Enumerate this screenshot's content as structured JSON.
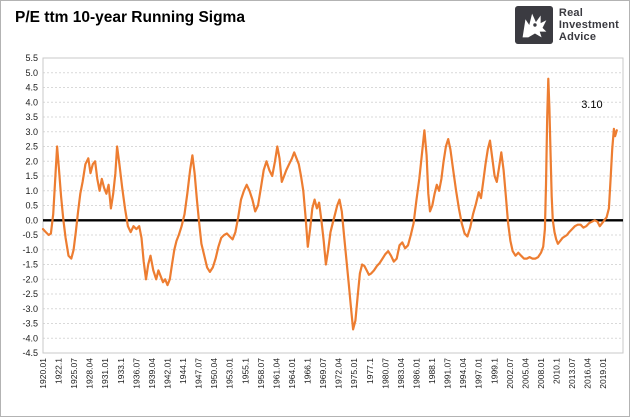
{
  "header": {
    "title": "P/E ttm 10-year Running Sigma"
  },
  "logo": {
    "lines": [
      "Real",
      "Investment",
      "Advice"
    ]
  },
  "chart_data": {
    "type": "line",
    "title": "P/E ttm 10-year Running Sigma",
    "series_name": "P/E ttm 10-year Running Sigma",
    "xlabel": "",
    "ylabel": "",
    "line_color": "#ED7D31",
    "zero_line_color": "#000000",
    "grid_color": "#d9d9d9",
    "ylim": [
      -4.5,
      5.5
    ],
    "y_tick_step": 0.5,
    "y_ticks": [
      "5.5",
      "5.0",
      "4.5",
      "4.0",
      "3.5",
      "3.0",
      "2.5",
      "2.0",
      "1.5",
      "1.0",
      "0.5",
      "0.0",
      "-0.5",
      "-1.0",
      "-1.5",
      "-2.0",
      "-2.5",
      "-3.0",
      "-3.5",
      "-4.0",
      "-4.5"
    ],
    "xlim": [
      1920.0,
      2022.5
    ],
    "x_tick_interval_years": 2.75,
    "x_tick_labels": [
      "1920.01",
      "1922.1",
      "1925.07",
      "1928.04",
      "1931.01",
      "1933.1",
      "1936.07",
      "1939.04",
      "1942.01",
      "1944.1",
      "1947.07",
      "1950.04",
      "1953.01",
      "1955.1",
      "1958.07",
      "1961.04",
      "1964.01",
      "1966.1",
      "1969.07",
      "1972.04",
      "1975.01",
      "1977.1",
      "1980.07",
      "1983.04",
      "1986.01",
      "1988.1",
      "1991.07",
      "1994.04",
      "1997.01",
      "1999.1",
      "2002.07",
      "2005.04",
      "2008.01",
      "2010.1",
      "2013.07",
      "2016.04",
      "2019.01"
    ],
    "annotation": {
      "text": "3.10",
      "year": 2017.0,
      "value": 3.8
    },
    "points": [
      [
        1920.0,
        -0.3
      ],
      [
        1920.5,
        -0.4
      ],
      [
        1921.0,
        -0.5
      ],
      [
        1921.4,
        -0.45
      ],
      [
        1921.8,
        0.2
      ],
      [
        1922.2,
        1.5
      ],
      [
        1922.5,
        2.5
      ],
      [
        1922.8,
        1.8
      ],
      [
        1923.2,
        0.8
      ],
      [
        1923.6,
        0.0
      ],
      [
        1924.0,
        -0.6
      ],
      [
        1924.5,
        -1.2
      ],
      [
        1925.0,
        -1.3
      ],
      [
        1925.4,
        -1.0
      ],
      [
        1925.8,
        -0.4
      ],
      [
        1926.2,
        0.3
      ],
      [
        1926.6,
        0.9
      ],
      [
        1927.0,
        1.3
      ],
      [
        1927.5,
        1.9
      ],
      [
        1928.0,
        2.1
      ],
      [
        1928.4,
        1.6
      ],
      [
        1928.8,
        1.9
      ],
      [
        1929.2,
        2.0
      ],
      [
        1929.6,
        1.4
      ],
      [
        1930.0,
        1.0
      ],
      [
        1930.4,
        1.4
      ],
      [
        1930.8,
        1.1
      ],
      [
        1931.2,
        0.9
      ],
      [
        1931.6,
        1.2
      ],
      [
        1932.0,
        0.4
      ],
      [
        1932.4,
        0.9
      ],
      [
        1932.8,
        1.6
      ],
      [
        1933.1,
        2.5
      ],
      [
        1933.5,
        1.9
      ],
      [
        1934.0,
        1.1
      ],
      [
        1934.5,
        0.4
      ],
      [
        1935.0,
        -0.2
      ],
      [
        1935.5,
        -0.4
      ],
      [
        1936.0,
        -0.2
      ],
      [
        1936.5,
        -0.3
      ],
      [
        1937.0,
        -0.2
      ],
      [
        1937.4,
        -0.6
      ],
      [
        1937.8,
        -1.4
      ],
      [
        1938.2,
        -2.0
      ],
      [
        1938.6,
        -1.5
      ],
      [
        1939.0,
        -1.2
      ],
      [
        1939.5,
        -1.7
      ],
      [
        1940.0,
        -2.0
      ],
      [
        1940.4,
        -1.7
      ],
      [
        1940.8,
        -1.9
      ],
      [
        1941.2,
        -2.1
      ],
      [
        1941.6,
        -2.0
      ],
      [
        1942.0,
        -2.2
      ],
      [
        1942.4,
        -2.0
      ],
      [
        1942.8,
        -1.5
      ],
      [
        1943.2,
        -1.0
      ],
      [
        1943.6,
        -0.7
      ],
      [
        1944.0,
        -0.5
      ],
      [
        1944.5,
        -0.2
      ],
      [
        1945.0,
        0.2
      ],
      [
        1945.5,
        0.9
      ],
      [
        1946.0,
        1.7
      ],
      [
        1946.4,
        2.2
      ],
      [
        1946.8,
        1.6
      ],
      [
        1947.2,
        0.7
      ],
      [
        1947.6,
        -0.1
      ],
      [
        1948.0,
        -0.8
      ],
      [
        1948.5,
        -1.2
      ],
      [
        1949.0,
        -1.6
      ],
      [
        1949.5,
        -1.75
      ],
      [
        1950.0,
        -1.6
      ],
      [
        1950.5,
        -1.3
      ],
      [
        1951.0,
        -0.9
      ],
      [
        1951.5,
        -0.6
      ],
      [
        1952.0,
        -0.5
      ],
      [
        1952.5,
        -0.45
      ],
      [
        1953.0,
        -0.55
      ],
      [
        1953.5,
        -0.65
      ],
      [
        1954.0,
        -0.4
      ],
      [
        1954.5,
        0.1
      ],
      [
        1955.0,
        0.7
      ],
      [
        1955.5,
        1.0
      ],
      [
        1956.0,
        1.2
      ],
      [
        1956.5,
        1.0
      ],
      [
        1957.0,
        0.7
      ],
      [
        1957.5,
        0.3
      ],
      [
        1958.0,
        0.5
      ],
      [
        1958.5,
        1.1
      ],
      [
        1959.0,
        1.7
      ],
      [
        1959.5,
        2.0
      ],
      [
        1960.0,
        1.7
      ],
      [
        1960.5,
        1.5
      ],
      [
        1961.0,
        2.0
      ],
      [
        1961.4,
        2.5
      ],
      [
        1961.8,
        2.1
      ],
      [
        1962.2,
        1.3
      ],
      [
        1962.6,
        1.5
      ],
      [
        1963.0,
        1.7
      ],
      [
        1963.5,
        1.9
      ],
      [
        1964.0,
        2.1
      ],
      [
        1964.4,
        2.3
      ],
      [
        1964.8,
        2.1
      ],
      [
        1965.2,
        1.9
      ],
      [
        1965.6,
        1.5
      ],
      [
        1966.0,
        1.0
      ],
      [
        1966.4,
        0.1
      ],
      [
        1966.8,
        -0.9
      ],
      [
        1967.2,
        -0.3
      ],
      [
        1967.6,
        0.4
      ],
      [
        1968.0,
        0.7
      ],
      [
        1968.4,
        0.4
      ],
      [
        1968.8,
        0.6
      ],
      [
        1969.2,
        0.0
      ],
      [
        1969.6,
        -0.7
      ],
      [
        1970.0,
        -1.5
      ],
      [
        1970.4,
        -1.0
      ],
      [
        1970.8,
        -0.4
      ],
      [
        1971.2,
        -0.1
      ],
      [
        1971.6,
        0.2
      ],
      [
        1972.0,
        0.5
      ],
      [
        1972.4,
        0.7
      ],
      [
        1972.8,
        0.3
      ],
      [
        1973.2,
        -0.5
      ],
      [
        1973.6,
        -1.3
      ],
      [
        1974.0,
        -2.1
      ],
      [
        1974.4,
        -2.9
      ],
      [
        1974.8,
        -3.7
      ],
      [
        1975.2,
        -3.4
      ],
      [
        1975.6,
        -2.6
      ],
      [
        1976.0,
        -1.8
      ],
      [
        1976.4,
        -1.5
      ],
      [
        1976.8,
        -1.55
      ],
      [
        1977.2,
        -1.7
      ],
      [
        1977.6,
        -1.85
      ],
      [
        1978.0,
        -1.8
      ],
      [
        1978.5,
        -1.7
      ],
      [
        1979.0,
        -1.55
      ],
      [
        1979.5,
        -1.45
      ],
      [
        1980.0,
        -1.3
      ],
      [
        1980.5,
        -1.15
      ],
      [
        1981.0,
        -1.05
      ],
      [
        1981.5,
        -1.2
      ],
      [
        1982.0,
        -1.4
      ],
      [
        1982.5,
        -1.3
      ],
      [
        1983.0,
        -0.85
      ],
      [
        1983.5,
        -0.75
      ],
      [
        1984.0,
        -0.95
      ],
      [
        1984.5,
        -0.85
      ],
      [
        1985.0,
        -0.5
      ],
      [
        1985.5,
        -0.1
      ],
      [
        1986.0,
        0.7
      ],
      [
        1986.5,
        1.4
      ],
      [
        1987.0,
        2.3
      ],
      [
        1987.4,
        3.05
      ],
      [
        1987.8,
        2.2
      ],
      [
        1988.1,
        0.9
      ],
      [
        1988.4,
        0.3
      ],
      [
        1988.8,
        0.5
      ],
      [
        1989.2,
        0.9
      ],
      [
        1989.6,
        1.2
      ],
      [
        1990.0,
        1.0
      ],
      [
        1990.4,
        1.4
      ],
      [
        1990.8,
        2.0
      ],
      [
        1991.2,
        2.5
      ],
      [
        1991.6,
        2.75
      ],
      [
        1992.0,
        2.4
      ],
      [
        1992.5,
        1.7
      ],
      [
        1993.0,
        1.0
      ],
      [
        1993.5,
        0.4
      ],
      [
        1994.0,
        -0.1
      ],
      [
        1994.5,
        -0.45
      ],
      [
        1995.0,
        -0.55
      ],
      [
        1995.5,
        -0.25
      ],
      [
        1996.0,
        0.2
      ],
      [
        1996.5,
        0.55
      ],
      [
        1997.0,
        0.95
      ],
      [
        1997.4,
        0.75
      ],
      [
        1997.8,
        1.3
      ],
      [
        1998.2,
        1.9
      ],
      [
        1998.6,
        2.4
      ],
      [
        1999.0,
        2.7
      ],
      [
        1999.4,
        2.1
      ],
      [
        1999.8,
        1.5
      ],
      [
        2000.2,
        1.3
      ],
      [
        2000.6,
        1.8
      ],
      [
        2001.0,
        2.3
      ],
      [
        2001.4,
        1.7
      ],
      [
        2001.8,
        0.8
      ],
      [
        2002.2,
        -0.1
      ],
      [
        2002.6,
        -0.7
      ],
      [
        2003.0,
        -1.05
      ],
      [
        2003.5,
        -1.2
      ],
      [
        2004.0,
        -1.1
      ],
      [
        2004.5,
        -1.2
      ],
      [
        2005.0,
        -1.3
      ],
      [
        2005.5,
        -1.3
      ],
      [
        2006.0,
        -1.25
      ],
      [
        2006.5,
        -1.3
      ],
      [
        2007.0,
        -1.3
      ],
      [
        2007.5,
        -1.25
      ],
      [
        2008.0,
        -1.1
      ],
      [
        2008.4,
        -0.9
      ],
      [
        2008.7,
        -0.3
      ],
      [
        2008.9,
        1.2
      ],
      [
        2009.1,
        3.5
      ],
      [
        2009.3,
        4.8
      ],
      [
        2009.5,
        3.8
      ],
      [
        2009.7,
        2.2
      ],
      [
        2009.9,
        0.8
      ],
      [
        2010.1,
        0.0
      ],
      [
        2010.4,
        -0.4
      ],
      [
        2010.7,
        -0.65
      ],
      [
        2011.0,
        -0.8
      ],
      [
        2011.4,
        -0.7
      ],
      [
        2011.8,
        -0.6
      ],
      [
        2012.2,
        -0.55
      ],
      [
        2012.6,
        -0.5
      ],
      [
        2013.0,
        -0.4
      ],
      [
        2013.5,
        -0.3
      ],
      [
        2014.0,
        -0.2
      ],
      [
        2014.5,
        -0.15
      ],
      [
        2015.0,
        -0.15
      ],
      [
        2015.5,
        -0.25
      ],
      [
        2016.0,
        -0.2
      ],
      [
        2016.5,
        -0.1
      ],
      [
        2017.0,
        -0.05
      ],
      [
        2017.5,
        0.0
      ],
      [
        2018.0,
        -0.05
      ],
      [
        2018.4,
        -0.2
      ],
      [
        2018.8,
        -0.1
      ],
      [
        2019.2,
        0.0
      ],
      [
        2019.6,
        0.1
      ],
      [
        2020.0,
        0.4
      ],
      [
        2020.3,
        1.4
      ],
      [
        2020.6,
        2.4
      ],
      [
        2020.9,
        3.1
      ],
      [
        2021.1,
        2.85
      ],
      [
        2021.4,
        3.05
      ]
    ]
  }
}
